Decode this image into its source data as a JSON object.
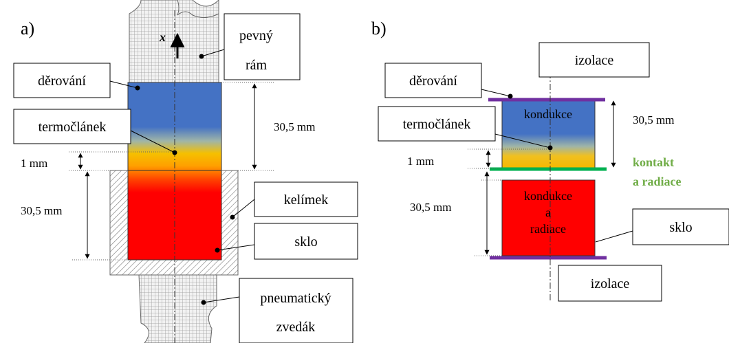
{
  "panel_a": {
    "label": "a)",
    "axis_label": "x",
    "callouts": {
      "pevny_ram_line1": "pevný",
      "pevny_ram_line2": "rám",
      "derovani": "děrování",
      "termoclanek": "termočlánek",
      "kelimek": "kelímek",
      "sklo": "sklo",
      "pneumaticky_zvedak_line1": "pneumatický",
      "pneumaticky_zvedak_line2": "zvedák"
    },
    "dimensions": {
      "upper": "30,5 mm",
      "gap": "1 mm",
      "lower": "30,5 mm"
    }
  },
  "panel_b": {
    "label": "b)",
    "callouts": {
      "izolace_top": "izolace",
      "derovani": "děrování",
      "termoclanek": "termočlánek",
      "sklo": "sklo",
      "izolace_bottom": "izolace"
    },
    "zones": {
      "upper": "kondukce",
      "lower_line1": "kondukce",
      "lower_line2": "a",
      "lower_line3": "radiace"
    },
    "contact": {
      "line1": "kontakt",
      "line2": "a radiace"
    },
    "dimensions": {
      "upper": "30,5 mm",
      "gap": "1 mm",
      "lower": "30,5 mm"
    }
  },
  "colors": {
    "blue": "#4472c4",
    "red": "#ff0000",
    "yellow": "#f5c000",
    "orange": "#ff8c00",
    "insulation": "#7030a0",
    "contact": "#00b050",
    "contact_text": "#70ad47"
  }
}
